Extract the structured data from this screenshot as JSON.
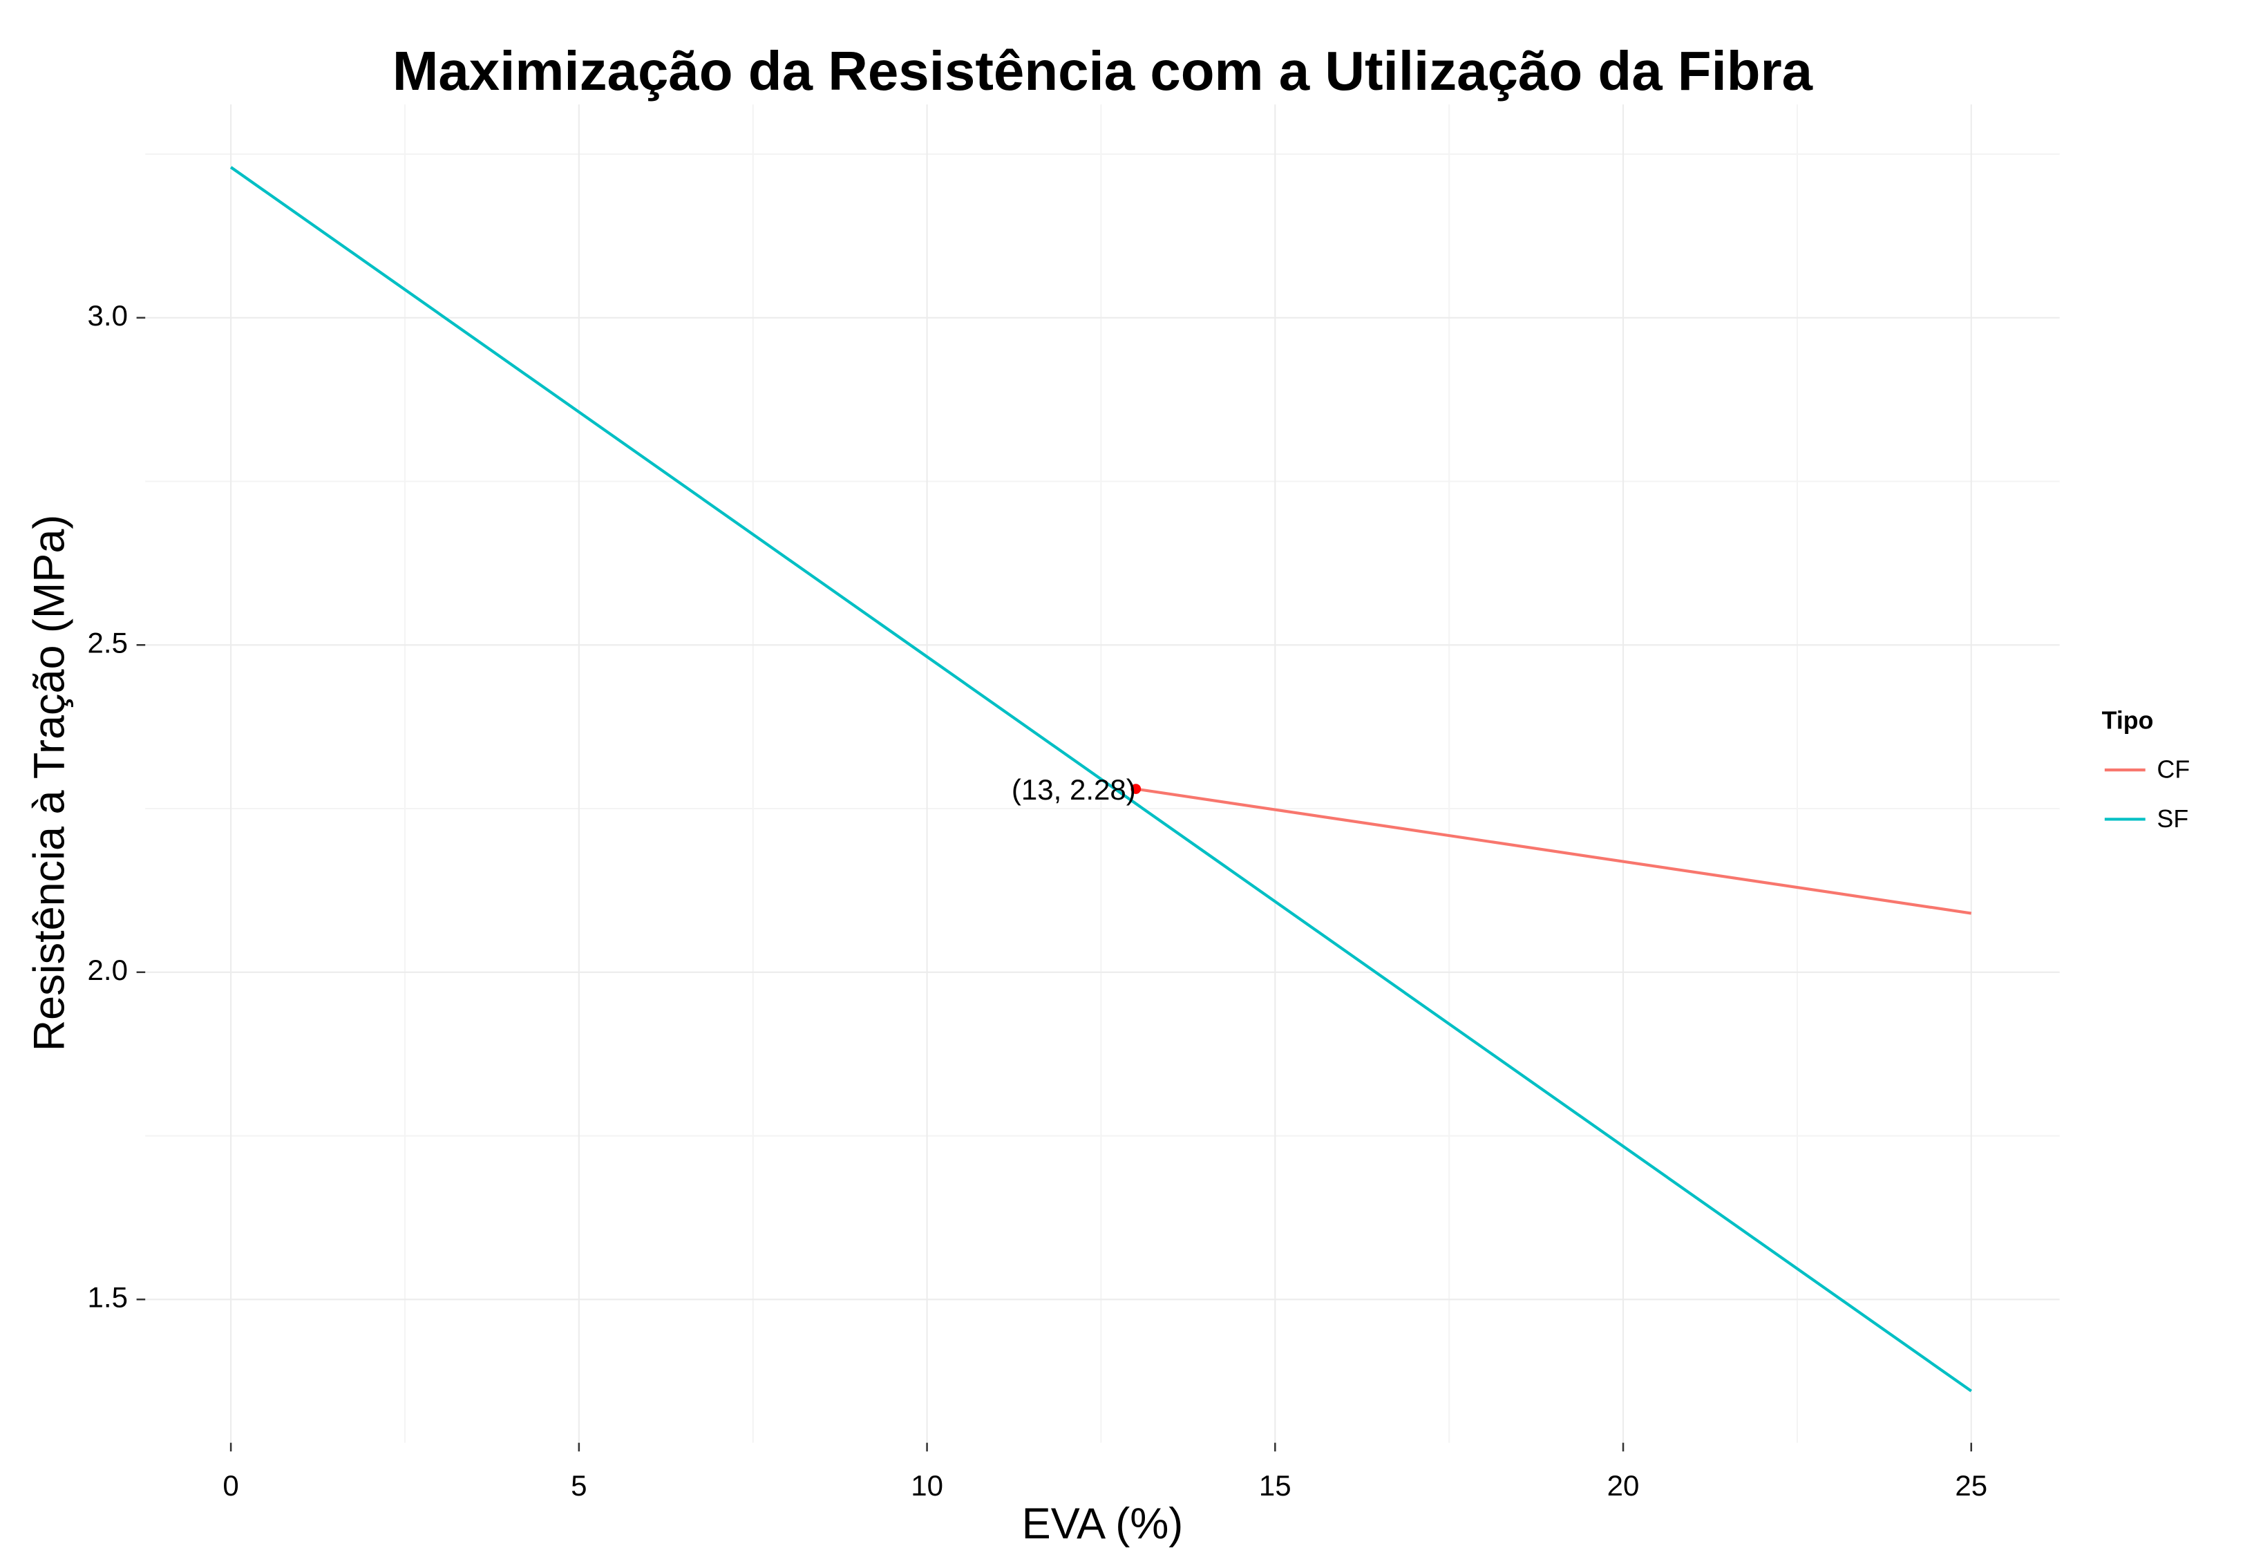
{
  "chart_data": {
    "type": "line",
    "title": "Maximização da Resistência com a Utilização da Fibra",
    "x_label": "EVA (%)",
    "y_label": "Resistência à Tração (MPa)",
    "series": [
      {
        "name": "CF",
        "color": "#F8766D",
        "x": [
          13,
          25
        ],
        "values": [
          2.28,
          2.09
        ]
      },
      {
        "name": "SF",
        "color": "#00BFC4",
        "x": [
          0,
          25
        ],
        "values": [
          3.23,
          1.36
        ]
      }
    ],
    "points": [
      {
        "x": 13,
        "y": 2.28,
        "label": "(13, 2.28)",
        "color": "#FF0000"
      }
    ],
    "xlim": [
      -1.23,
      26.27
    ],
    "ylim": [
      1.281,
      3.326
    ],
    "xticks": [
      0,
      5,
      10,
      15,
      20,
      25
    ],
    "yticks": [
      1.5,
      {
        "value": 2,
        "label": "2.0"
      },
      2.5,
      {
        "value": 3,
        "label": "3.0"
      }
    ],
    "x_minor_ticks": [
      2.5,
      7.5,
      12.5,
      17.5,
      22.5
    ],
    "y_minor_ticks": [
      1.75,
      2.25,
      2.75,
      3.25
    ],
    "grid": true,
    "legend": {
      "title": "Tipo",
      "position": "right"
    }
  }
}
